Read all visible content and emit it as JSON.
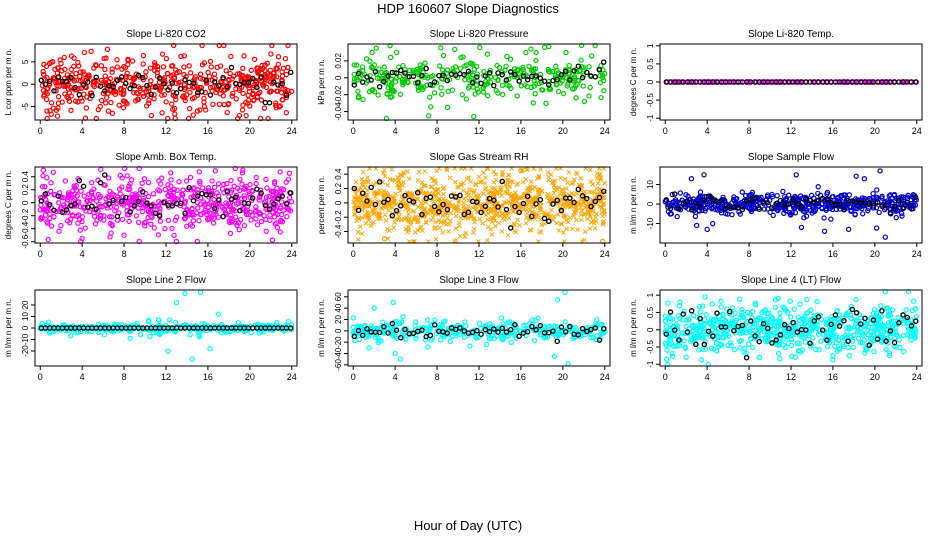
{
  "title": "HDP  160607  Slope Diagnostics",
  "xlabel": "Hour of Day (UTC)",
  "colors": {
    "recent_points": "#000000",
    "panel_border": "#000000"
  },
  "chart_data": [
    {
      "type": "scatter",
      "title": "Slope Li-820 CO2",
      "ylabel": "L cor ppm per m n.",
      "color": "#ff0000",
      "xlim": [
        -0.5,
        24.5
      ],
      "ylim": [
        -8,
        9
      ],
      "xticks": [
        0,
        4,
        8,
        12,
        16,
        20,
        24
      ],
      "yticks": [
        -5,
        0,
        5
      ],
      "spread": 3.2,
      "spikes": [
        [
          3.2,
          4
        ],
        [
          6.5,
          -6
        ],
        [
          10.6,
          -7
        ],
        [
          2.3,
          6
        ],
        [
          15,
          -6
        ],
        [
          19,
          -7
        ]
      ],
      "n": 520,
      "recent_spread": 1.6,
      "note": "dense red points with black recent points"
    },
    {
      "type": "scatter",
      "title": "Slope Li-820 Pressure",
      "ylabel": "kPa per m n.",
      "color": "#00cc00",
      "xlim": [
        -0.5,
        24.5
      ],
      "ylim": [
        -0.05,
        0.04
      ],
      "xticks": [
        0,
        4,
        8,
        12,
        16,
        20,
        24
      ],
      "yticks": [
        -0.04,
        -0.02,
        0.0,
        0.02
      ],
      "spread": 0.012,
      "spikes": [
        [
          1.8,
          0.03
        ],
        [
          7.2,
          -0.045
        ],
        [
          11.5,
          -0.046
        ],
        [
          20.3,
          0.03
        ],
        [
          2.2,
          0.035
        ],
        [
          9,
          -0.035
        ],
        [
          12.8,
          0.028
        ]
      ],
      "n": 330,
      "recent_spread": 0.006,
      "note": "green points clustered near zero"
    },
    {
      "type": "scatter",
      "title": "Slope Li-820 Temp.",
      "ylabel": "degrees C per m n.",
      "color": "#ff00ff",
      "xlim": [
        -0.5,
        24.5
      ],
      "ylim": [
        -1.05,
        1.05
      ],
      "xticks": [
        0,
        4,
        8,
        12,
        16,
        20,
        24
      ],
      "yticks": [
        -1.0,
        -0.5,
        0.0,
        0.5,
        1.0
      ],
      "spread": 0.0,
      "spikes": [],
      "n": 150,
      "recent_spread": 0.0,
      "note": "flat line of points at zero"
    },
    {
      "type": "scatter",
      "title": "Slope Amb. Box Temp.",
      "ylabel": "degrees C per m n.",
      "color": "#ff00ff",
      "xlim": [
        -0.5,
        24.5
      ],
      "ylim": [
        -0.62,
        0.55
      ],
      "xticks": [
        0,
        4,
        8,
        12,
        16,
        20,
        24
      ],
      "yticks": [
        -0.6,
        -0.4,
        -0.2,
        0.0,
        0.2,
        0.4
      ],
      "spread": 0.2,
      "spikes": [
        [
          4,
          -0.55
        ],
        [
          0.3,
          0.5
        ],
        [
          8,
          -0.5
        ]
      ],
      "n": 560,
      "recent_spread": 0.15,
      "note": "magenta points"
    },
    {
      "type": "scatter",
      "title": "Slope Gas Stream RH",
      "ylabel": "percent per m n.",
      "color": "#ffa500",
      "xlim": [
        -0.5,
        24.5
      ],
      "ylim": [
        -0.56,
        0.5
      ],
      "xticks": [
        0,
        4,
        8,
        12,
        16,
        20,
        24
      ],
      "yticks": [
        -0.4,
        -0.2,
        0.0,
        0.2,
        0.4
      ],
      "spread": 0.2,
      "spikes": [
        [
          3,
          -0.5
        ],
        [
          16,
          0.45
        ],
        [
          23.8,
          -0.54
        ]
      ],
      "n": 950,
      "recent_spread": 0.12,
      "note": "dense orange cross points"
    },
    {
      "type": "scatter",
      "title": "Slope Sample Flow",
      "ylabel": "m l/m n per m n.",
      "color": "#0000cc",
      "xlim": [
        -0.5,
        24.5
      ],
      "ylim": [
        -20,
        19
      ],
      "xticks": [
        0,
        4,
        8,
        12,
        16,
        20,
        24
      ],
      "yticks": [
        -10,
        0,
        10
      ],
      "spread": 2.5,
      "spikes": [
        [
          2.5,
          13
        ],
        [
          3.7,
          15
        ],
        [
          4,
          -13
        ],
        [
          12.5,
          15
        ],
        [
          13,
          -12
        ],
        [
          15.2,
          -14
        ],
        [
          17.5,
          -13
        ],
        [
          19,
          13
        ],
        [
          21,
          -17
        ],
        [
          20.5,
          17
        ],
        [
          3,
          -11
        ]
      ],
      "n": 520,
      "recent_spread": 2.0,
      "note": "blue points with wide outliers"
    },
    {
      "type": "scatter",
      "title": "Slope Line 2 Flow",
      "ylabel": "m l/m n per m n.",
      "color": "#00ffff",
      "xlim": [
        -0.5,
        24.5
      ],
      "ylim": [
        -33,
        33
      ],
      "xticks": [
        0,
        4,
        8,
        12,
        16,
        20,
        24
      ],
      "yticks": [
        -20,
        -10,
        0,
        10,
        20
      ],
      "spread": 2.0,
      "spikes": [
        [
          13.8,
          30
        ],
        [
          15.3,
          31
        ],
        [
          12.2,
          -20
        ],
        [
          14.5,
          -27
        ],
        [
          16.2,
          -18
        ],
        [
          13,
          22
        ],
        [
          17,
          12
        ]
      ],
      "n": 310,
      "recent_spread": 0.0,
      "note": "cyan points, black recent points on zero line"
    },
    {
      "type": "scatter",
      "title": "Slope Line 3 Flow",
      "ylabel": "m l/m n per m n.",
      "color": "#00ffff",
      "xlim": [
        -0.5,
        24.5
      ],
      "ylim": [
        -62,
        72
      ],
      "xticks": [
        0,
        4,
        8,
        12,
        16,
        20,
        24
      ],
      "yticks": [
        -60,
        -40,
        -20,
        0,
        20,
        40,
        60
      ],
      "spread": 8,
      "spikes": [
        [
          2,
          40
        ],
        [
          3.8,
          50
        ],
        [
          4,
          -40
        ],
        [
          19.5,
          55
        ],
        [
          20.2,
          68
        ],
        [
          20.5,
          -58
        ],
        [
          19.2,
          -45
        ],
        [
          1.5,
          -30
        ],
        [
          4.5,
          -50
        ]
      ],
      "n": 330,
      "recent_spread": 6,
      "note": "cyan points"
    },
    {
      "type": "scatter",
      "title": "Slope Line 4 (LT) Flow",
      "ylabel": "m l/m n per m n.",
      "color": "#00ffff",
      "xlim": [
        -0.5,
        24.5
      ],
      "ylim": [
        -1.05,
        1.15
      ],
      "xticks": [
        0,
        4,
        8,
        12,
        16,
        20,
        24
      ],
      "yticks": [
        -1.0,
        -0.5,
        0.0,
        0.5,
        1.0
      ],
      "spread": 0.3,
      "spikes": [
        [
          4.1,
          -1.02
        ],
        [
          3.8,
          0.95
        ],
        [
          21,
          1.1
        ],
        [
          16,
          -0.75
        ],
        [
          9,
          -0.8
        ]
      ],
      "n": 680,
      "recent_spread": 0.3,
      "note": "dense cyan points"
    }
  ]
}
